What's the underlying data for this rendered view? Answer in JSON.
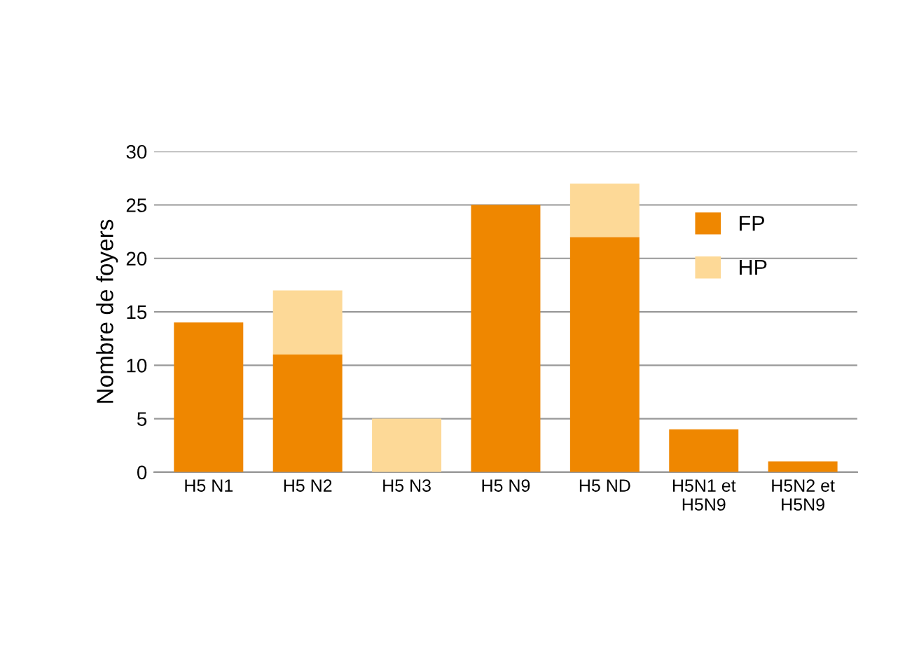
{
  "chart_data": {
    "type": "bar",
    "ylabel": "Nombre de foyers",
    "categories": [
      "H5 N1",
      "H5 N2",
      "H5 N3",
      "H5 N9",
      "H5 ND",
      "H5N1 et\nH5N9",
      "H5N2 et\nH5N9"
    ],
    "series": [
      {
        "name": "FP",
        "color": "#ef8700",
        "values": [
          14,
          11,
          0,
          25,
          22,
          4,
          1
        ]
      },
      {
        "name": "HP",
        "color": "#fdd997",
        "values": [
          0,
          6,
          5,
          0,
          5,
          0,
          0
        ]
      }
    ],
    "stacked": true,
    "ylim": [
      0,
      30
    ],
    "yticks": [
      0,
      5,
      10,
      15,
      20,
      25,
      30
    ],
    "grid": "y",
    "legend": "top right"
  }
}
